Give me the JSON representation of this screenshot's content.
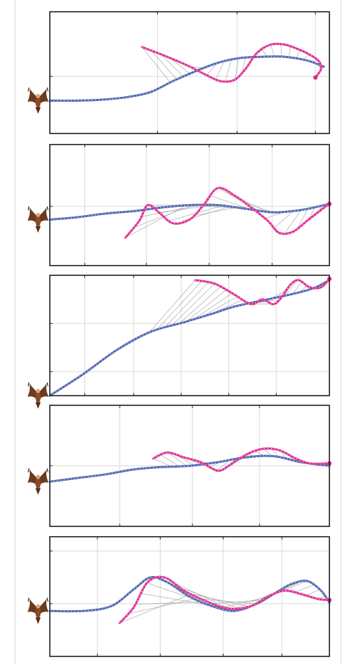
{
  "figure": {
    "background": "#ffffff",
    "border_color": "#d6d6d6",
    "pursuer_color": "#e0298e",
    "target_color": "#4a63b0",
    "link_color": "#9a9a9a",
    "grid_color": "#d9d9d9",
    "marker_icon": "hawk-icon"
  },
  "chart_data": [
    {
      "type": "line",
      "title": "",
      "xlabel": "",
      "ylabel": "",
      "xlim": [
        0,
        1
      ],
      "ylim": [
        0,
        1
      ],
      "grid": true,
      "target": [
        [
          0,
          0.27
        ],
        [
          0.1,
          0.27
        ],
        [
          0.2,
          0.28
        ],
        [
          0.28,
          0.3
        ],
        [
          0.36,
          0.34
        ],
        [
          0.44,
          0.43
        ],
        [
          0.52,
          0.51
        ],
        [
          0.6,
          0.58
        ],
        [
          0.68,
          0.62
        ],
        [
          0.76,
          0.63
        ],
        [
          0.84,
          0.63
        ],
        [
          0.92,
          0.6
        ],
        [
          0.98,
          0.55
        ]
      ],
      "pursuer": [
        [
          0.33,
          0.71
        ],
        [
          0.42,
          0.63
        ],
        [
          0.5,
          0.55
        ],
        [
          0.56,
          0.48
        ],
        [
          0.61,
          0.43
        ],
        [
          0.66,
          0.44
        ],
        [
          0.7,
          0.53
        ],
        [
          0.74,
          0.66
        ],
        [
          0.79,
          0.73
        ],
        [
          0.84,
          0.73
        ],
        [
          0.88,
          0.7
        ],
        [
          0.92,
          0.66
        ],
        [
          0.96,
          0.6
        ],
        [
          0.97,
          0.53
        ],
        [
          0.95,
          0.46
        ]
      ],
      "links": 22
    },
    {
      "type": "line",
      "title": "",
      "xlabel": "",
      "ylabel": "",
      "xlim": [
        0,
        1
      ],
      "ylim": [
        0,
        1
      ],
      "grid": true,
      "target": [
        [
          0,
          0.38
        ],
        [
          0.1,
          0.4
        ],
        [
          0.2,
          0.43
        ],
        [
          0.3,
          0.45
        ],
        [
          0.4,
          0.48
        ],
        [
          0.5,
          0.5
        ],
        [
          0.6,
          0.5
        ],
        [
          0.7,
          0.47
        ],
        [
          0.8,
          0.44
        ],
        [
          0.9,
          0.46
        ],
        [
          1.0,
          0.51
        ]
      ],
      "pursuer": [
        [
          0.27,
          0.23
        ],
        [
          0.32,
          0.37
        ],
        [
          0.35,
          0.5
        ],
        [
          0.39,
          0.44
        ],
        [
          0.44,
          0.35
        ],
        [
          0.5,
          0.38
        ],
        [
          0.55,
          0.5
        ],
        [
          0.6,
          0.64
        ],
        [
          0.66,
          0.58
        ],
        [
          0.72,
          0.48
        ],
        [
          0.78,
          0.37
        ],
        [
          0.82,
          0.27
        ],
        [
          0.87,
          0.28
        ],
        [
          0.92,
          0.37
        ],
        [
          0.97,
          0.46
        ],
        [
          1.0,
          0.51
        ]
      ],
      "links": 20
    },
    {
      "type": "line",
      "title": "",
      "xlabel": "",
      "ylabel": "",
      "xlim": [
        0,
        1
      ],
      "ylim": [
        0,
        1
      ],
      "grid": true,
      "target": [
        [
          0,
          0.0
        ],
        [
          0.12,
          0.18
        ],
        [
          0.24,
          0.38
        ],
        [
          0.36,
          0.53
        ],
        [
          0.48,
          0.61
        ],
        [
          0.58,
          0.68
        ],
        [
          0.66,
          0.74
        ],
        [
          0.76,
          0.79
        ],
        [
          0.86,
          0.84
        ],
        [
          0.94,
          0.89
        ],
        [
          1.0,
          0.96
        ]
      ],
      "pursuer": [
        [
          0.52,
          0.96
        ],
        [
          0.59,
          0.93
        ],
        [
          0.66,
          0.84
        ],
        [
          0.72,
          0.76
        ],
        [
          0.76,
          0.8
        ],
        [
          0.8,
          0.76
        ],
        [
          0.83,
          0.82
        ],
        [
          0.86,
          0.92
        ],
        [
          0.89,
          0.96
        ],
        [
          0.93,
          0.9
        ],
        [
          0.97,
          0.9
        ],
        [
          1.0,
          0.97
        ]
      ],
      "links": 24
    },
    {
      "type": "line",
      "title": "",
      "xlabel": "",
      "ylabel": "",
      "xlim": [
        0,
        1
      ],
      "ylim": [
        0,
        1
      ],
      "grid": true,
      "target": [
        [
          0,
          0.37
        ],
        [
          0.1,
          0.4
        ],
        [
          0.2,
          0.43
        ],
        [
          0.3,
          0.47
        ],
        [
          0.4,
          0.49
        ],
        [
          0.5,
          0.5
        ],
        [
          0.6,
          0.53
        ],
        [
          0.7,
          0.57
        ],
        [
          0.8,
          0.58
        ],
        [
          0.9,
          0.53
        ],
        [
          1.0,
          0.5
        ]
      ],
      "pursuer": [
        [
          0.37,
          0.56
        ],
        [
          0.42,
          0.61
        ],
        [
          0.48,
          0.57
        ],
        [
          0.54,
          0.53
        ],
        [
          0.6,
          0.46
        ],
        [
          0.64,
          0.5
        ],
        [
          0.7,
          0.59
        ],
        [
          0.76,
          0.64
        ],
        [
          0.82,
          0.63
        ],
        [
          0.88,
          0.56
        ],
        [
          0.93,
          0.52
        ],
        [
          1.0,
          0.52
        ]
      ],
      "links": 22
    },
    {
      "type": "line",
      "title": "",
      "xlabel": "",
      "ylabel": "",
      "xlim": [
        0,
        1
      ],
      "ylim": [
        0,
        1
      ],
      "grid": true,
      "target": [
        [
          0,
          0.38
        ],
        [
          0.12,
          0.38
        ],
        [
          0.22,
          0.42
        ],
        [
          0.3,
          0.56
        ],
        [
          0.36,
          0.66
        ],
        [
          0.42,
          0.62
        ],
        [
          0.5,
          0.5
        ],
        [
          0.58,
          0.42
        ],
        [
          0.66,
          0.38
        ],
        [
          0.74,
          0.44
        ],
        [
          0.8,
          0.52
        ],
        [
          0.86,
          0.6
        ],
        [
          0.92,
          0.63
        ],
        [
          0.97,
          0.55
        ],
        [
          1.0,
          0.45
        ]
      ],
      "pursuer": [
        [
          0.25,
          0.28
        ],
        [
          0.3,
          0.41
        ],
        [
          0.35,
          0.62
        ],
        [
          0.41,
          0.66
        ],
        [
          0.48,
          0.55
        ],
        [
          0.56,
          0.46
        ],
        [
          0.64,
          0.4
        ],
        [
          0.72,
          0.42
        ],
        [
          0.78,
          0.5
        ],
        [
          0.84,
          0.55
        ],
        [
          0.9,
          0.52
        ],
        [
          0.96,
          0.48
        ],
        [
          1.0,
          0.47
        ]
      ],
      "links": 20
    }
  ]
}
